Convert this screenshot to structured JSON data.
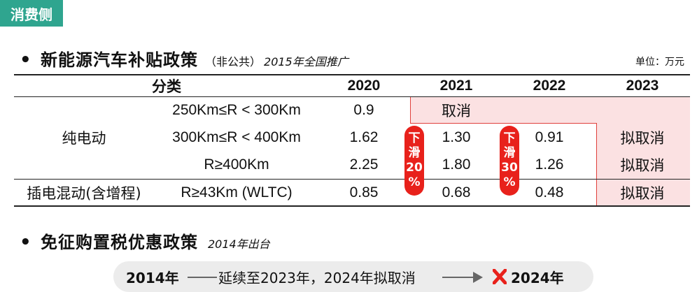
{
  "section_tag": "消费侧",
  "policy1": {
    "title": "新能源汽车补贴政策",
    "paren": "（非公共）",
    "note": "2015年全国推广",
    "unit": "单位：万元"
  },
  "table": {
    "headers": [
      "分类",
      "2020",
      "2021",
      "2022",
      "2023"
    ],
    "group_bev": "纯电动",
    "group_phev": "插电混动(含增程)",
    "rows": [
      {
        "range": "250Km≤R < 300Km",
        "y2020": "0.9",
        "y2021": "取消",
        "y2022": "",
        "y2023": ""
      },
      {
        "range": "300Km≤R < 400Km",
        "y2020": "1.62",
        "y2021": "1.30",
        "y2022": "0.91",
        "y2023": "拟取消"
      },
      {
        "range": "R≥400Km",
        "y2020": "2.25",
        "y2021": "1.80",
        "y2022": "1.26",
        "y2023": "拟取消"
      },
      {
        "range": "R≥43Km (WLTC)",
        "y2020": "0.85",
        "y2021": "0.68",
        "y2022": "0.48",
        "y2023": "拟取消"
      }
    ],
    "decline1": [
      "下",
      "滑",
      "20",
      "%"
    ],
    "decline2": [
      "下",
      "滑",
      "30",
      "%"
    ],
    "colors": {
      "highlight": "#fbe1e2",
      "accent_red": "#e8211b",
      "tag_green": "#2fa58f"
    }
  },
  "policy2": {
    "title": "免征购置税优惠政策",
    "note": "2014年出台"
  },
  "timeline": {
    "start": "2014年",
    "middle": "延续至2023年，2024年拟取消",
    "end_icon": "x-mark-icon",
    "end": "2024年"
  }
}
